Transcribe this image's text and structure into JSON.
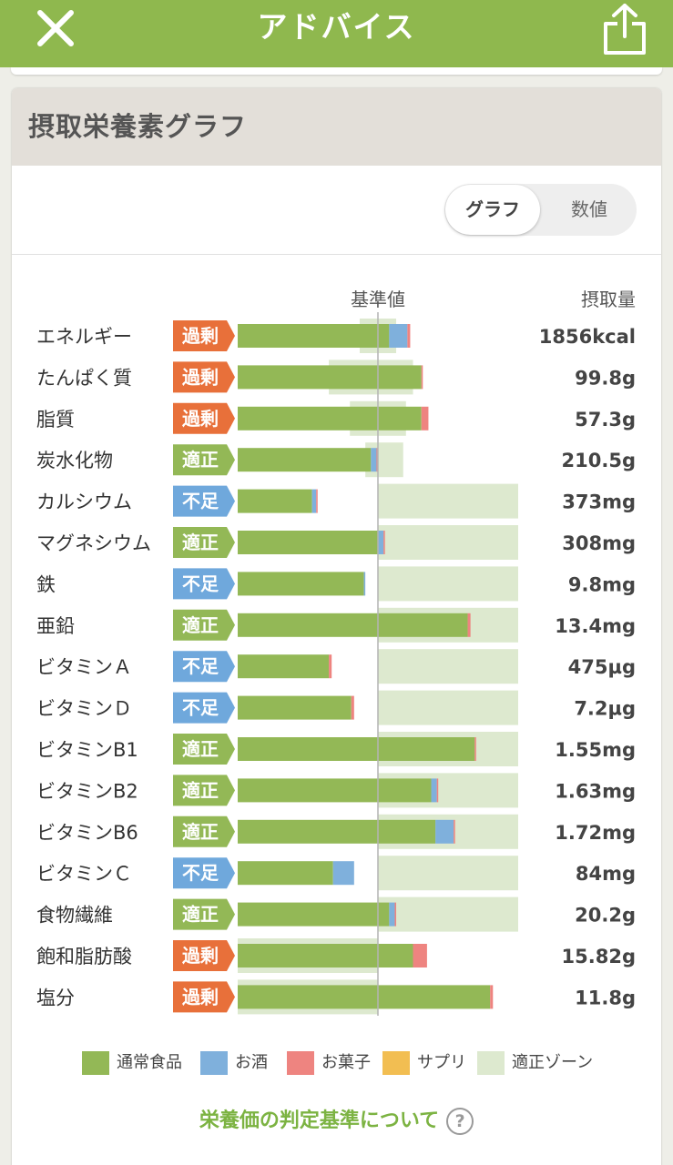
{
  "header": {
    "title": "アドバイス",
    "close_icon": "close-icon",
    "share_icon": "share-icon"
  },
  "card": {
    "title": "摂取栄養素グラフ"
  },
  "toggle": {
    "graph_label": "グラフ",
    "value_label": "数値",
    "selected": "グラフ"
  },
  "colors": {
    "header": "#8fb84e",
    "food": "#93b856",
    "alcohol": "#7fb0dc",
    "snack": "#ee8480",
    "supplement": "#f2be52",
    "zone": "#dde9cf",
    "over": "#e8703a",
    "ok": "#93b856",
    "under": "#6fa8dc"
  },
  "chart_data": {
    "type": "bar",
    "stacked": true,
    "reference_label": "基準値",
    "value_header": "摂取量",
    "x_scale": "reference value at 100%",
    "xlim": [
      0,
      200
    ],
    "rows": [
      {
        "name": "エネルギー",
        "status": "過剰",
        "status_type": "over",
        "intake": "1856kcal",
        "food": 108,
        "alcohol": 13,
        "snack": 2,
        "supplement": 0,
        "zone": [
          87,
          113
        ]
      },
      {
        "name": "たんぱく質",
        "status": "過剰",
        "status_type": "over",
        "intake": "99.8g",
        "food": 131,
        "alcohol": 0,
        "snack": 1,
        "supplement": 0,
        "zone": [
          65,
          125
        ]
      },
      {
        "name": "脂質",
        "status": "過剰",
        "status_type": "over",
        "intake": "57.3g",
        "food": 131,
        "alcohol": 0,
        "snack": 5,
        "supplement": 0,
        "zone": [
          80,
          120
        ]
      },
      {
        "name": "炭水化物",
        "status": "適正",
        "status_type": "ok",
        "intake": "210.5g",
        "food": 95,
        "alcohol": 4,
        "snack": 1,
        "supplement": 0,
        "zone": [
          91,
          118
        ]
      },
      {
        "name": "カルシウム",
        "status": "不足",
        "status_type": "under",
        "intake": "373mg",
        "food": 53,
        "alcohol": 3,
        "snack": 1,
        "supplement": 0,
        "zone": [
          100,
          200
        ]
      },
      {
        "name": "マグネシウム",
        "status": "適正",
        "status_type": "ok",
        "intake": "308mg",
        "food": 100,
        "alcohol": 4,
        "snack": 1,
        "supplement": 0,
        "zone": [
          100,
          200
        ]
      },
      {
        "name": "鉄",
        "status": "不足",
        "status_type": "under",
        "intake": "9.8mg",
        "food": 90,
        "alcohol": 1,
        "snack": 0,
        "supplement": 0,
        "zone": [
          100,
          200
        ]
      },
      {
        "name": "亜鉛",
        "status": "適正",
        "status_type": "ok",
        "intake": "13.4mg",
        "food": 164,
        "alcohol": 0,
        "snack": 2,
        "supplement": 0,
        "zone": [
          100,
          200
        ]
      },
      {
        "name": "ビタミンＡ",
        "status": "不足",
        "status_type": "under",
        "intake": "475µg",
        "food": 65,
        "alcohol": 0,
        "snack": 2,
        "supplement": 0,
        "zone": [
          100,
          200
        ]
      },
      {
        "name": "ビタミンＤ",
        "status": "不足",
        "status_type": "under",
        "intake": "7.2µg",
        "food": 81,
        "alcohol": 0,
        "snack": 2,
        "supplement": 0,
        "zone": [
          100,
          200
        ]
      },
      {
        "name": "ビタミンB1",
        "status": "適正",
        "status_type": "ok",
        "intake": "1.55mg",
        "food": 169,
        "alcohol": 0,
        "snack": 1,
        "supplement": 0,
        "zone": [
          100,
          200
        ]
      },
      {
        "name": "ビタミンB2",
        "status": "適正",
        "status_type": "ok",
        "intake": "1.63mg",
        "food": 138,
        "alcohol": 4,
        "snack": 1,
        "supplement": 0,
        "zone": [
          100,
          200
        ]
      },
      {
        "name": "ビタミンB6",
        "status": "適正",
        "status_type": "ok",
        "intake": "1.72mg",
        "food": 141,
        "alcohol": 13,
        "snack": 1,
        "supplement": 0,
        "zone": [
          100,
          200
        ]
      },
      {
        "name": "ビタミンＣ",
        "status": "不足",
        "status_type": "under",
        "intake": "84mg",
        "food": 68,
        "alcohol": 15,
        "snack": 0,
        "supplement": 0,
        "zone": [
          100,
          200
        ]
      },
      {
        "name": "食物繊維",
        "status": "適正",
        "status_type": "ok",
        "intake": "20.2g",
        "food": 108,
        "alcohol": 4,
        "snack": 1,
        "supplement": 0,
        "zone": [
          100,
          200
        ]
      },
      {
        "name": "飽和脂肪酸",
        "status": "過剰",
        "status_type": "over",
        "intake": "15.82g",
        "food": 125,
        "alcohol": 0,
        "snack": 10,
        "supplement": 0,
        "zone": [
          0,
          100
        ]
      },
      {
        "name": "塩分",
        "status": "過剰",
        "status_type": "over",
        "intake": "11.8g",
        "food": 180,
        "alcohol": 0,
        "snack": 2,
        "supplement": 0,
        "zone": [
          0,
          100
        ]
      }
    ],
    "legend": [
      "通常食品",
      "お酒",
      "お菓子",
      "サプリ",
      "適正ゾーン"
    ]
  },
  "legend": {
    "food": "通常食品",
    "alcohol": "お酒",
    "snack": "お菓子",
    "supplement": "サプリ",
    "zone": "適正ゾーン"
  },
  "footer": {
    "link_label": "栄養価の判定基準について",
    "help_icon": "help-icon",
    "help_glyph": "?"
  }
}
